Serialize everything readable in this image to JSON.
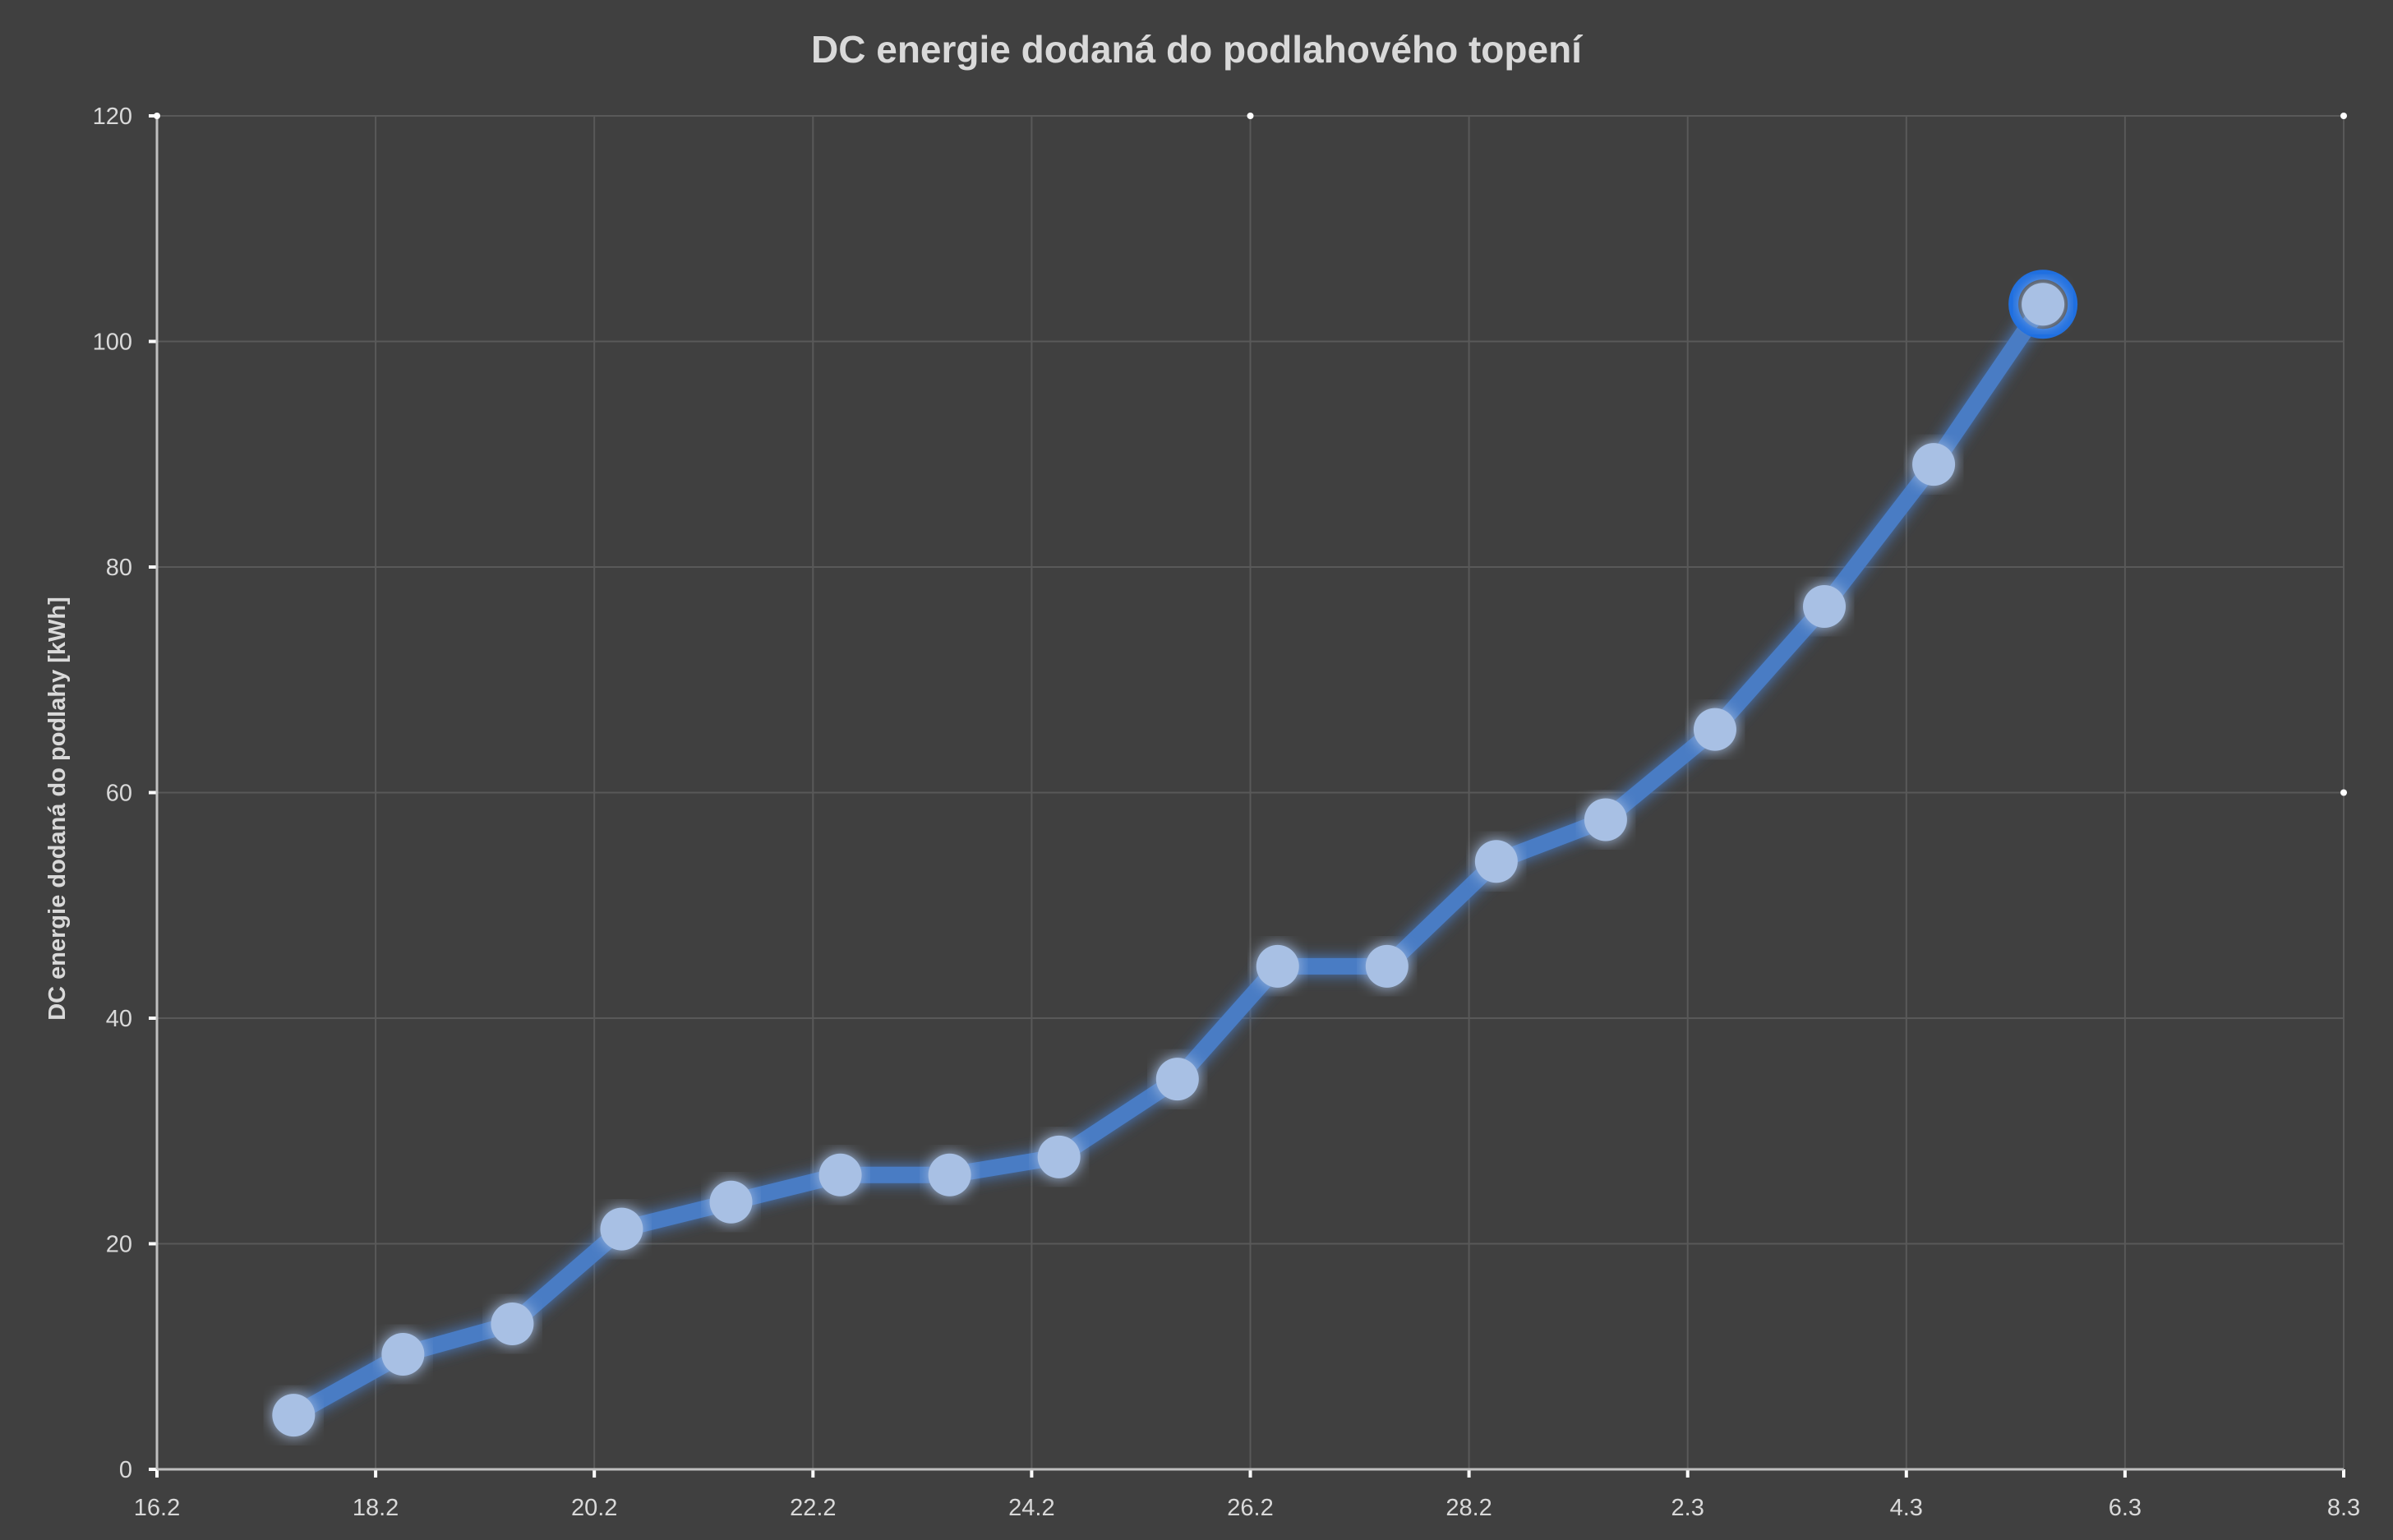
{
  "chart_data": {
    "type": "line",
    "title": "DC energie dodaná do podlahového topení",
    "xlabel": "",
    "ylabel": "DC energie dodaná do podlahy [kWh]",
    "x_tick_labels": [
      "16.2",
      "18.2",
      "20.2",
      "22.2",
      "24.2",
      "26.2",
      "28.2",
      "2.3",
      "4.3",
      "6.3",
      "8.3"
    ],
    "y_ticks": [
      0,
      20,
      40,
      60,
      80,
      100,
      120
    ],
    "ylim": [
      0,
      120
    ],
    "grid": true,
    "legend": "none",
    "series": [
      {
        "points": [
          {
            "x": "17.2 06:00",
            "y": 4.8
          },
          {
            "x": "18.2 06:00",
            "y": 10.2
          },
          {
            "x": "19.2 06:00",
            "y": 12.9
          },
          {
            "x": "20.2 06:00",
            "y": 21.3
          },
          {
            "x": "21.2 06:00",
            "y": 23.7
          },
          {
            "x": "22.2 06:00",
            "y": 26.1
          },
          {
            "x": "23.2 06:00",
            "y": 26.1
          },
          {
            "x": "24.2 06:00",
            "y": 27.7
          },
          {
            "x": "25.2 08:00",
            "y": 34.6
          },
          {
            "x": "26.2 06:00",
            "y": 44.6
          },
          {
            "x": "27.2 06:00",
            "y": 44.6
          },
          {
            "x": "28.2 06:00",
            "y": 53.9
          },
          {
            "x": "1.3 06:00",
            "y": 57.6
          },
          {
            "x": "2.3 06:00",
            "y": 65.6
          },
          {
            "x": "3.3 06:00",
            "y": 76.5
          },
          {
            "x": "4.3 06:00",
            "y": 89.1
          },
          {
            "x": "5.3 06:00",
            "y": 103.3
          }
        ]
      }
    ],
    "colors": {
      "background": "#404040",
      "line": "#4a7cc4",
      "marker": "#a8c0e4",
      "highlight_ring": "#1f6fe0",
      "grid": "#595959",
      "text": "#d9d9d9"
    }
  }
}
